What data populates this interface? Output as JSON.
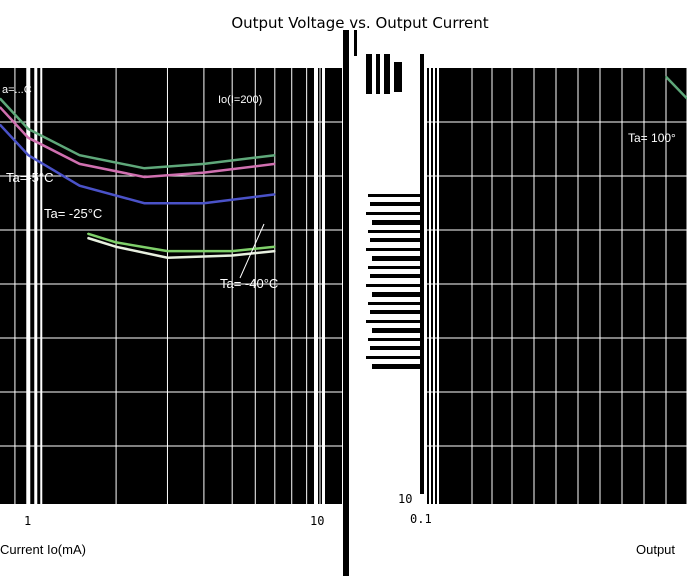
{
  "title": "Output Voltage vs. Output Current",
  "left_chart": {
    "annotations": {
      "condition": "Io(I=200)",
      "top_left": "a=...C",
      "ta_m5": "Ta=-5°C",
      "ta_m25": "Ta= -25°C",
      "ta_m40": "Ta= -40°C"
    },
    "x_ticks": [
      "1",
      "10"
    ],
    "xlabel": "Current   Io(mA)"
  },
  "right_chart": {
    "annotations": {
      "ta_100": "Ta= 100°"
    },
    "y_tick": "10",
    "x_tick": "0.1",
    "xlabel": "Output"
  },
  "colors": {
    "plot_bg": "#000000",
    "grid": "#ffffff",
    "series_green": "#5fa87a",
    "series_pink": "#d070b0",
    "series_blue": "#4a52c8",
    "series_lightgreen": "#7fd06a"
  },
  "chart_data": [
    {
      "type": "line",
      "title": "Output Voltage vs. Output Current",
      "xlabel": "Current   Io(mA)",
      "ylabel": "",
      "x_scale": "log",
      "xlim": [
        0.8,
        10
      ],
      "grid": true,
      "series": [
        {
          "name": "",
          "x": [
            0.8,
            1.0,
            1.5,
            2.5,
            4.0,
            7.0
          ],
          "y": [
            0.93,
            0.86,
            0.8,
            0.77,
            0.78,
            0.8
          ]
        },
        {
          "name": "",
          "x": [
            0.8,
            1.0,
            1.5,
            2.5,
            4.0,
            7.0
          ],
          "y": [
            0.91,
            0.84,
            0.78,
            0.75,
            0.76,
            0.78
          ]
        },
        {
          "name": "Ta=-5°C",
          "x": [
            0.8,
            1.0,
            1.5,
            2.5,
            4.0,
            7.0
          ],
          "y": [
            0.87,
            0.8,
            0.73,
            0.69,
            0.69,
            0.71
          ]
        },
        {
          "name": "Ta= -25°C",
          "x": [
            1.6,
            2.0,
            3.0,
            5.0,
            7.0
          ],
          "y": [
            0.62,
            0.6,
            0.58,
            0.58,
            0.59
          ]
        },
        {
          "name": "Ta= -40°C",
          "x": [
            1.6,
            2.0,
            3.0,
            5.0,
            7.0
          ],
          "y": [
            0.61,
            0.59,
            0.565,
            0.57,
            0.58
          ]
        }
      ]
    },
    {
      "type": "line",
      "title": "",
      "xlabel": "Output",
      "ylabel": "",
      "x_scale": "log",
      "grid": true,
      "series": [
        {
          "name": "Ta= 100°",
          "x": [
            8.5,
            10
          ],
          "y": [
            0.98,
            0.93
          ]
        }
      ]
    }
  ]
}
